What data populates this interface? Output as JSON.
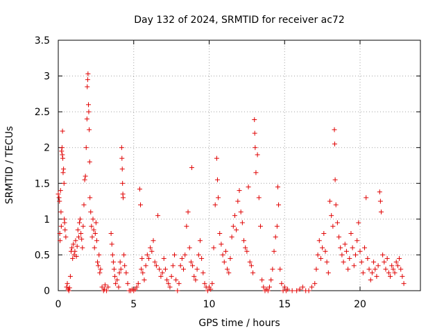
{
  "chart_data": {
    "type": "scatter",
    "title": "Day 132 of 2024, SRMTID for receiver ac72",
    "xlabel": "GPS time / hours",
    "ylabel": "SRMTID / TECUs",
    "xlim": [
      0,
      24
    ],
    "ylim": [
      0,
      3.5
    ],
    "xticks": [
      0,
      5,
      10,
      15,
      20
    ],
    "yticks": [
      0,
      0.5,
      1,
      1.5,
      2,
      2.5,
      3,
      3.5
    ],
    "xtick_labels": [
      "0",
      "5",
      "10",
      "15",
      "20"
    ],
    "ytick_labels": [
      "0",
      "0.5",
      "1",
      "1.5",
      "2",
      "2.5",
      "3",
      "3.5"
    ],
    "grid": true,
    "marker": "+",
    "marker_color": "#e00000",
    "series": [
      {
        "name": "ac72",
        "points": [
          [
            0.0,
            1.35
          ],
          [
            0.05,
            1.3
          ],
          [
            0.08,
            1.25
          ],
          [
            0.1,
            0.8
          ],
          [
            0.12,
            0.7
          ],
          [
            0.15,
            1.4
          ],
          [
            0.18,
            1.1
          ],
          [
            0.2,
            0.9
          ],
          [
            0.22,
            1.95
          ],
          [
            0.25,
            2.0
          ],
          [
            0.27,
            1.9
          ],
          [
            0.28,
            2.23
          ],
          [
            0.3,
            1.85
          ],
          [
            0.32,
            1.65
          ],
          [
            0.35,
            1.7
          ],
          [
            0.38,
            1.5
          ],
          [
            0.4,
            1.0
          ],
          [
            0.42,
            0.95
          ],
          [
            0.45,
            0.85
          ],
          [
            0.5,
            0.75
          ],
          [
            0.55,
            0.05
          ],
          [
            0.6,
            0.1
          ],
          [
            0.65,
            0.02
          ],
          [
            0.7,
            0.0
          ],
          [
            0.75,
            0.04
          ],
          [
            0.8,
            0.2
          ],
          [
            0.85,
            0.55
          ],
          [
            0.9,
            0.6
          ],
          [
            0.95,
            0.45
          ],
          [
            1.0,
            0.65
          ],
          [
            1.05,
            0.5
          ],
          [
            1.1,
            0.55
          ],
          [
            1.15,
            0.7
          ],
          [
            1.2,
            0.48
          ],
          [
            1.25,
            0.62
          ],
          [
            1.3,
            0.85
          ],
          [
            1.35,
            0.75
          ],
          [
            1.4,
            0.95
          ],
          [
            1.45,
            1.0
          ],
          [
            1.5,
            0.8
          ],
          [
            1.55,
            0.72
          ],
          [
            1.6,
            0.6
          ],
          [
            1.65,
            0.9
          ],
          [
            1.7,
            1.2
          ],
          [
            1.75,
            1.55
          ],
          [
            1.8,
            1.6
          ],
          [
            1.85,
            2.0
          ],
          [
            1.9,
            2.4
          ],
          [
            1.92,
            2.85
          ],
          [
            1.95,
            2.95
          ],
          [
            1.97,
            3.03
          ],
          [
            2.0,
            2.6
          ],
          [
            2.02,
            2.5
          ],
          [
            2.05,
            2.25
          ],
          [
            2.08,
            1.8
          ],
          [
            2.1,
            1.3
          ],
          [
            2.15,
            1.1
          ],
          [
            2.2,
            0.9
          ],
          [
            2.25,
            0.75
          ],
          [
            2.3,
            1.0
          ],
          [
            2.35,
            0.85
          ],
          [
            2.4,
            0.6
          ],
          [
            2.45,
            0.8
          ],
          [
            2.5,
            0.95
          ],
          [
            2.55,
            0.7
          ],
          [
            2.6,
            0.4
          ],
          [
            2.65,
            0.35
          ],
          [
            2.7,
            0.5
          ],
          [
            2.75,
            0.25
          ],
          [
            2.8,
            0.3
          ],
          [
            2.9,
            0.05
          ],
          [
            3.0,
            0.0
          ],
          [
            3.05,
            0.02
          ],
          [
            3.1,
            0.08
          ],
          [
            3.2,
            0.0
          ],
          [
            3.3,
            0.05
          ],
          [
            3.5,
            0.8
          ],
          [
            3.55,
            0.65
          ],
          [
            3.6,
            0.5
          ],
          [
            3.65,
            0.4
          ],
          [
            3.7,
            0.3
          ],
          [
            3.75,
            0.2
          ],
          [
            3.8,
            0.1
          ],
          [
            3.9,
            0.15
          ],
          [
            4.0,
            0.05
          ],
          [
            4.05,
            0.25
          ],
          [
            4.1,
            0.4
          ],
          [
            4.15,
            0.3
          ],
          [
            4.2,
            2.0
          ],
          [
            4.22,
            1.85
          ],
          [
            4.24,
            1.7
          ],
          [
            4.26,
            1.5
          ],
          [
            4.28,
            1.35
          ],
          [
            4.3,
            1.3
          ],
          [
            4.35,
            0.5
          ],
          [
            4.4,
            0.35
          ],
          [
            4.5,
            0.25
          ],
          [
            4.6,
            0.1
          ],
          [
            4.7,
            0.0
          ],
          [
            4.8,
            0.0
          ],
          [
            4.9,
            0.02
          ],
          [
            5.0,
            0.0
          ],
          [
            5.1,
            0.02
          ],
          [
            5.2,
            0.05
          ],
          [
            5.3,
            0.1
          ],
          [
            5.4,
            1.42
          ],
          [
            5.45,
            1.2
          ],
          [
            5.5,
            0.3
          ],
          [
            5.55,
            0.45
          ],
          [
            5.6,
            0.25
          ],
          [
            5.7,
            0.15
          ],
          [
            5.8,
            0.35
          ],
          [
            5.9,
            0.5
          ],
          [
            6.0,
            0.45
          ],
          [
            6.1,
            0.6
          ],
          [
            6.2,
            0.55
          ],
          [
            6.3,
            0.7
          ],
          [
            6.4,
            0.4
          ],
          [
            6.5,
            0.35
          ],
          [
            6.6,
            1.05
          ],
          [
            6.7,
            0.3
          ],
          [
            6.8,
            0.2
          ],
          [
            6.9,
            0.25
          ],
          [
            7.0,
            0.45
          ],
          [
            7.1,
            0.3
          ],
          [
            7.2,
            0.15
          ],
          [
            7.3,
            0.1
          ],
          [
            7.4,
            0.05
          ],
          [
            7.5,
            0.2
          ],
          [
            7.6,
            0.35
          ],
          [
            7.7,
            0.5
          ],
          [
            7.8,
            0.15
          ],
          [
            7.9,
            0.0
          ],
          [
            8.0,
            0.1
          ],
          [
            8.1,
            0.35
          ],
          [
            8.2,
            0.45
          ],
          [
            8.3,
            0.3
          ],
          [
            8.4,
            0.5
          ],
          [
            8.5,
            0.9
          ],
          [
            8.6,
            1.1
          ],
          [
            8.7,
            0.6
          ],
          [
            8.8,
            0.4
          ],
          [
            8.85,
            1.72
          ],
          [
            8.9,
            0.35
          ],
          [
            9.0,
            0.2
          ],
          [
            9.1,
            0.15
          ],
          [
            9.2,
            0.3
          ],
          [
            9.3,
            0.5
          ],
          [
            9.4,
            0.7
          ],
          [
            9.5,
            0.45
          ],
          [
            9.6,
            0.25
          ],
          [
            9.7,
            0.1
          ],
          [
            9.8,
            0.05
          ],
          [
            9.9,
            0.0
          ],
          [
            10.0,
            0.05
          ],
          [
            10.1,
            0.02
          ],
          [
            10.2,
            0.1
          ],
          [
            10.3,
            0.6
          ],
          [
            10.4,
            1.2
          ],
          [
            10.5,
            1.85
          ],
          [
            10.55,
            1.55
          ],
          [
            10.6,
            1.3
          ],
          [
            10.7,
            0.8
          ],
          [
            10.8,
            0.65
          ],
          [
            10.9,
            0.5
          ],
          [
            11.0,
            0.4
          ],
          [
            11.1,
            0.55
          ],
          [
            11.2,
            0.3
          ],
          [
            11.3,
            0.25
          ],
          [
            11.4,
            0.45
          ],
          [
            11.5,
            0.75
          ],
          [
            11.6,
            0.9
          ],
          [
            11.7,
            1.05
          ],
          [
            11.8,
            0.85
          ],
          [
            11.9,
            1.25
          ],
          [
            12.0,
            1.4
          ],
          [
            12.1,
            1.1
          ],
          [
            12.2,
            0.95
          ],
          [
            12.3,
            0.7
          ],
          [
            12.4,
            0.6
          ],
          [
            12.5,
            0.55
          ],
          [
            12.6,
            1.45
          ],
          [
            12.7,
            0.4
          ],
          [
            12.8,
            0.35
          ],
          [
            12.9,
            0.25
          ],
          [
            13.0,
            2.39
          ],
          [
            13.02,
            2.2
          ],
          [
            13.05,
            2.0
          ],
          [
            13.1,
            1.65
          ],
          [
            13.2,
            1.9
          ],
          [
            13.3,
            1.3
          ],
          [
            13.4,
            0.9
          ],
          [
            13.5,
            0.15
          ],
          [
            13.6,
            0.05
          ],
          [
            13.7,
            0.0
          ],
          [
            13.8,
            0.02
          ],
          [
            13.9,
            0.0
          ],
          [
            14.0,
            0.05
          ],
          [
            14.1,
            0.15
          ],
          [
            14.2,
            0.3
          ],
          [
            14.3,
            0.55
          ],
          [
            14.4,
            0.75
          ],
          [
            14.5,
            0.9
          ],
          [
            14.55,
            1.45
          ],
          [
            14.6,
            1.2
          ],
          [
            14.7,
            0.3
          ],
          [
            14.8,
            0.1
          ],
          [
            14.9,
            0.0
          ],
          [
            15.0,
            0.05
          ],
          [
            15.1,
            0.0
          ],
          [
            15.2,
            0.02
          ],
          [
            15.5,
            0.0
          ],
          [
            15.8,
            0.0
          ],
          [
            16.0,
            0.02
          ],
          [
            16.2,
            0.05
          ],
          [
            16.4,
            0.0
          ],
          [
            16.6,
            0.0
          ],
          [
            16.8,
            0.05
          ],
          [
            17.0,
            0.1
          ],
          [
            17.1,
            0.3
          ],
          [
            17.2,
            0.5
          ],
          [
            17.3,
            0.7
          ],
          [
            17.4,
            0.45
          ],
          [
            17.5,
            0.6
          ],
          [
            17.6,
            0.8
          ],
          [
            17.7,
            0.55
          ],
          [
            17.8,
            0.4
          ],
          [
            17.9,
            0.25
          ],
          [
            18.0,
            1.25
          ],
          [
            18.1,
            1.05
          ],
          [
            18.2,
            0.9
          ],
          [
            18.3,
            2.25
          ],
          [
            18.32,
            2.05
          ],
          [
            18.35,
            1.55
          ],
          [
            18.4,
            1.2
          ],
          [
            18.5,
            0.95
          ],
          [
            18.6,
            0.75
          ],
          [
            18.7,
            0.6
          ],
          [
            18.8,
            0.5
          ],
          [
            18.9,
            0.4
          ],
          [
            19.0,
            0.65
          ],
          [
            19.1,
            0.55
          ],
          [
            19.2,
            0.3
          ],
          [
            19.3,
            0.45
          ],
          [
            19.4,
            0.8
          ],
          [
            19.5,
            0.6
          ],
          [
            19.6,
            0.35
          ],
          [
            19.7,
            0.5
          ],
          [
            19.8,
            0.7
          ],
          [
            19.9,
            0.95
          ],
          [
            20.0,
            0.55
          ],
          [
            20.1,
            0.4
          ],
          [
            20.2,
            0.25
          ],
          [
            20.3,
            0.6
          ],
          [
            20.4,
            1.3
          ],
          [
            20.5,
            0.45
          ],
          [
            20.6,
            0.3
          ],
          [
            20.7,
            0.15
          ],
          [
            20.8,
            0.25
          ],
          [
            20.9,
            0.4
          ],
          [
            21.0,
            0.3
          ],
          [
            21.1,
            0.2
          ],
          [
            21.2,
            0.35
          ],
          [
            21.3,
            1.38
          ],
          [
            21.35,
            1.25
          ],
          [
            21.4,
            1.1
          ],
          [
            21.5,
            0.5
          ],
          [
            21.6,
            0.4
          ],
          [
            21.7,
            0.3
          ],
          [
            21.8,
            0.45
          ],
          [
            21.9,
            0.25
          ],
          [
            22.0,
            0.2
          ],
          [
            22.1,
            0.35
          ],
          [
            22.2,
            0.3
          ],
          [
            22.3,
            0.25
          ],
          [
            22.4,
            0.4
          ],
          [
            22.5,
            0.35
          ],
          [
            22.6,
            0.45
          ],
          [
            22.7,
            0.3
          ],
          [
            22.8,
            0.2
          ],
          [
            22.9,
            0.1
          ]
        ]
      }
    ]
  }
}
